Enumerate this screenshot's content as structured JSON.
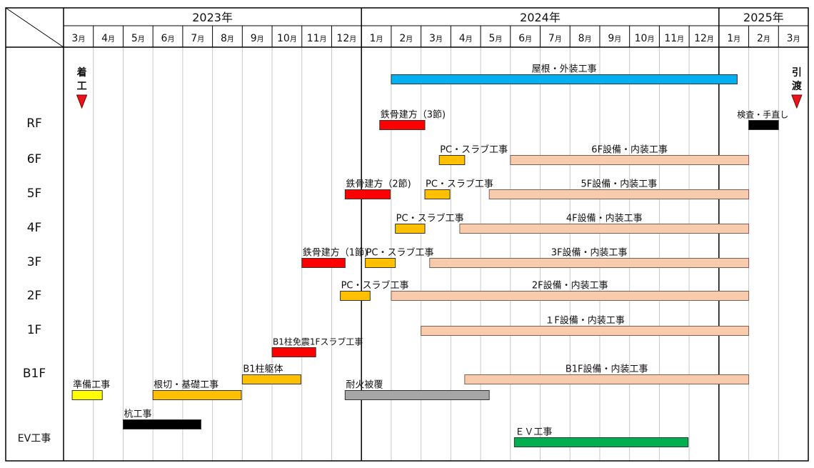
{
  "chart_data": {
    "type": "gantt",
    "title": "",
    "years": [
      {
        "label": "2023年",
        "start": "2023-03",
        "end": "2023-12"
      },
      {
        "label": "2024年",
        "start": "2024-01",
        "end": "2024-12"
      },
      {
        "label": "2025年",
        "start": "2025-01",
        "end": "2025-03"
      }
    ],
    "months": [
      "3月",
      "4月",
      "5月",
      "6月",
      "7月",
      "8月",
      "9月",
      "10月",
      "11月",
      "12月",
      "1月",
      "2月",
      "3月",
      "4月",
      "5月",
      "6月",
      "7月",
      "8月",
      "9月",
      "10月",
      "11月",
      "12月",
      "1月",
      "2月",
      "3月"
    ],
    "x_range": [
      "2023-03-01",
      "2025-03-31"
    ],
    "rows": [
      {
        "label": "RF"
      },
      {
        "label": "6F"
      },
      {
        "label": "5F"
      },
      {
        "label": "4F"
      },
      {
        "label": "3F"
      },
      {
        "label": "2F"
      },
      {
        "label": "1F"
      },
      {
        "label": "B1F"
      },
      {
        "label": "EV工事"
      }
    ],
    "milestones": [
      {
        "label": "着\n工",
        "date": "2023-03-20",
        "color": "#e8141c"
      },
      {
        "label": "引\n渡",
        "date": "2025-03-20",
        "color": "#e8141c"
      }
    ],
    "colors": {
      "steel": "#ff0000",
      "pc": "#ffc000",
      "interior": "#f8cbad",
      "roof": "#00b0f0",
      "prep": "#ffff00",
      "foundation": "#ffc000",
      "pile": "#000000",
      "fireproof": "#a6a6a6",
      "ev": "#00b050",
      "inspect": "#000000"
    },
    "tasks": [
      {
        "label": "屋根・外装工事",
        "row": "RF",
        "start": "2024-02-01",
        "end": "2025-01-20",
        "color_key": "roof",
        "lane": "upper"
      },
      {
        "label": "鉄骨建方（3節)",
        "row": "RF",
        "start": "2024-01-20",
        "end": "2024-03-05",
        "color_key": "steel"
      },
      {
        "label": "検査・手直し",
        "row": "RF",
        "start": "2025-02-01",
        "end": "2025-03-01",
        "color_key": "inspect"
      },
      {
        "label": "PC・スラブ工事",
        "row": "6F",
        "start": "2024-03-20",
        "end": "2024-04-15",
        "color_key": "pc"
      },
      {
        "label": "6F設備・内装工事",
        "row": "6F",
        "start": "2024-06-01",
        "end": "2025-02-01",
        "color_key": "interior"
      },
      {
        "label": "鉄骨建方（2節)",
        "row": "5F",
        "start": "2023-12-15",
        "end": "2024-01-31",
        "color_key": "steel"
      },
      {
        "label": "PC・スラブ工事",
        "row": "5F",
        "start": "2024-03-05",
        "end": "2024-03-31",
        "color_key": "pc"
      },
      {
        "label": "5F設備・内装工事",
        "row": "5F",
        "start": "2024-05-10",
        "end": "2025-02-01",
        "color_key": "interior"
      },
      {
        "label": "PC・スラブ工事",
        "row": "4F",
        "start": "2024-02-05",
        "end": "2024-03-05",
        "color_key": "pc"
      },
      {
        "label": "4F設備・内装工事",
        "row": "4F",
        "start": "2024-04-10",
        "end": "2025-02-01",
        "color_key": "interior"
      },
      {
        "label": "鉄骨建方（1節)",
        "row": "3F",
        "start": "2023-11-01",
        "end": "2023-12-15",
        "color_key": "steel"
      },
      {
        "label": "PC・スラブ工事",
        "row": "3F",
        "start": "2024-01-05",
        "end": "2024-02-05",
        "color_key": "pc"
      },
      {
        "label": "3F設備・内装工事",
        "row": "3F",
        "start": "2024-03-10",
        "end": "2025-02-01",
        "color_key": "interior"
      },
      {
        "label": "PC・スラブ工事",
        "row": "2F",
        "start": "2023-12-10",
        "end": "2024-01-10",
        "color_key": "pc"
      },
      {
        "label": "2F設備・内装工事",
        "row": "2F",
        "start": "2024-02-01",
        "end": "2025-02-01",
        "color_key": "interior"
      },
      {
        "label": "１F設備・内装工事",
        "row": "1F",
        "start": "2024-03-01",
        "end": "2025-02-01",
        "color_key": "interior"
      },
      {
        "label": "B1柱免震1Fスラブ工事",
        "row": "B1F",
        "start": "2023-10-01",
        "end": "2023-11-15",
        "color_key": "steel",
        "lane": "b1-1"
      },
      {
        "label": "B1柱躯体",
        "row": "B1F",
        "start": "2023-09-01",
        "end": "2023-10-31",
        "color_key": "foundation",
        "lane": "b1-2"
      },
      {
        "label": "B1F設備・内装工事",
        "row": "B1F",
        "start": "2024-04-15",
        "end": "2025-02-01",
        "color_key": "interior",
        "lane": "b1-2"
      },
      {
        "label": "準備工事",
        "row": "B1F",
        "start": "2023-03-10",
        "end": "2023-04-10",
        "color_key": "prep",
        "lane": "b1-3"
      },
      {
        "label": "根切・基礎工事",
        "row": "B1F",
        "start": "2023-06-01",
        "end": "2023-08-31",
        "color_key": "foundation",
        "lane": "b1-3"
      },
      {
        "label": "耐火被覆",
        "row": "B1F",
        "start": "2023-12-15",
        "end": "2024-05-10",
        "color_key": "fireproof",
        "lane": "b1-3"
      },
      {
        "label": "杭工事",
        "row": "B1F",
        "start": "2023-05-01",
        "end": "2023-07-20",
        "color_key": "pile",
        "lane": "b1-4"
      },
      {
        "label": "ＥＶ工事",
        "row": "EV工事",
        "start": "2024-06-05",
        "end": "2024-11-30",
        "color_key": "ev"
      }
    ]
  }
}
